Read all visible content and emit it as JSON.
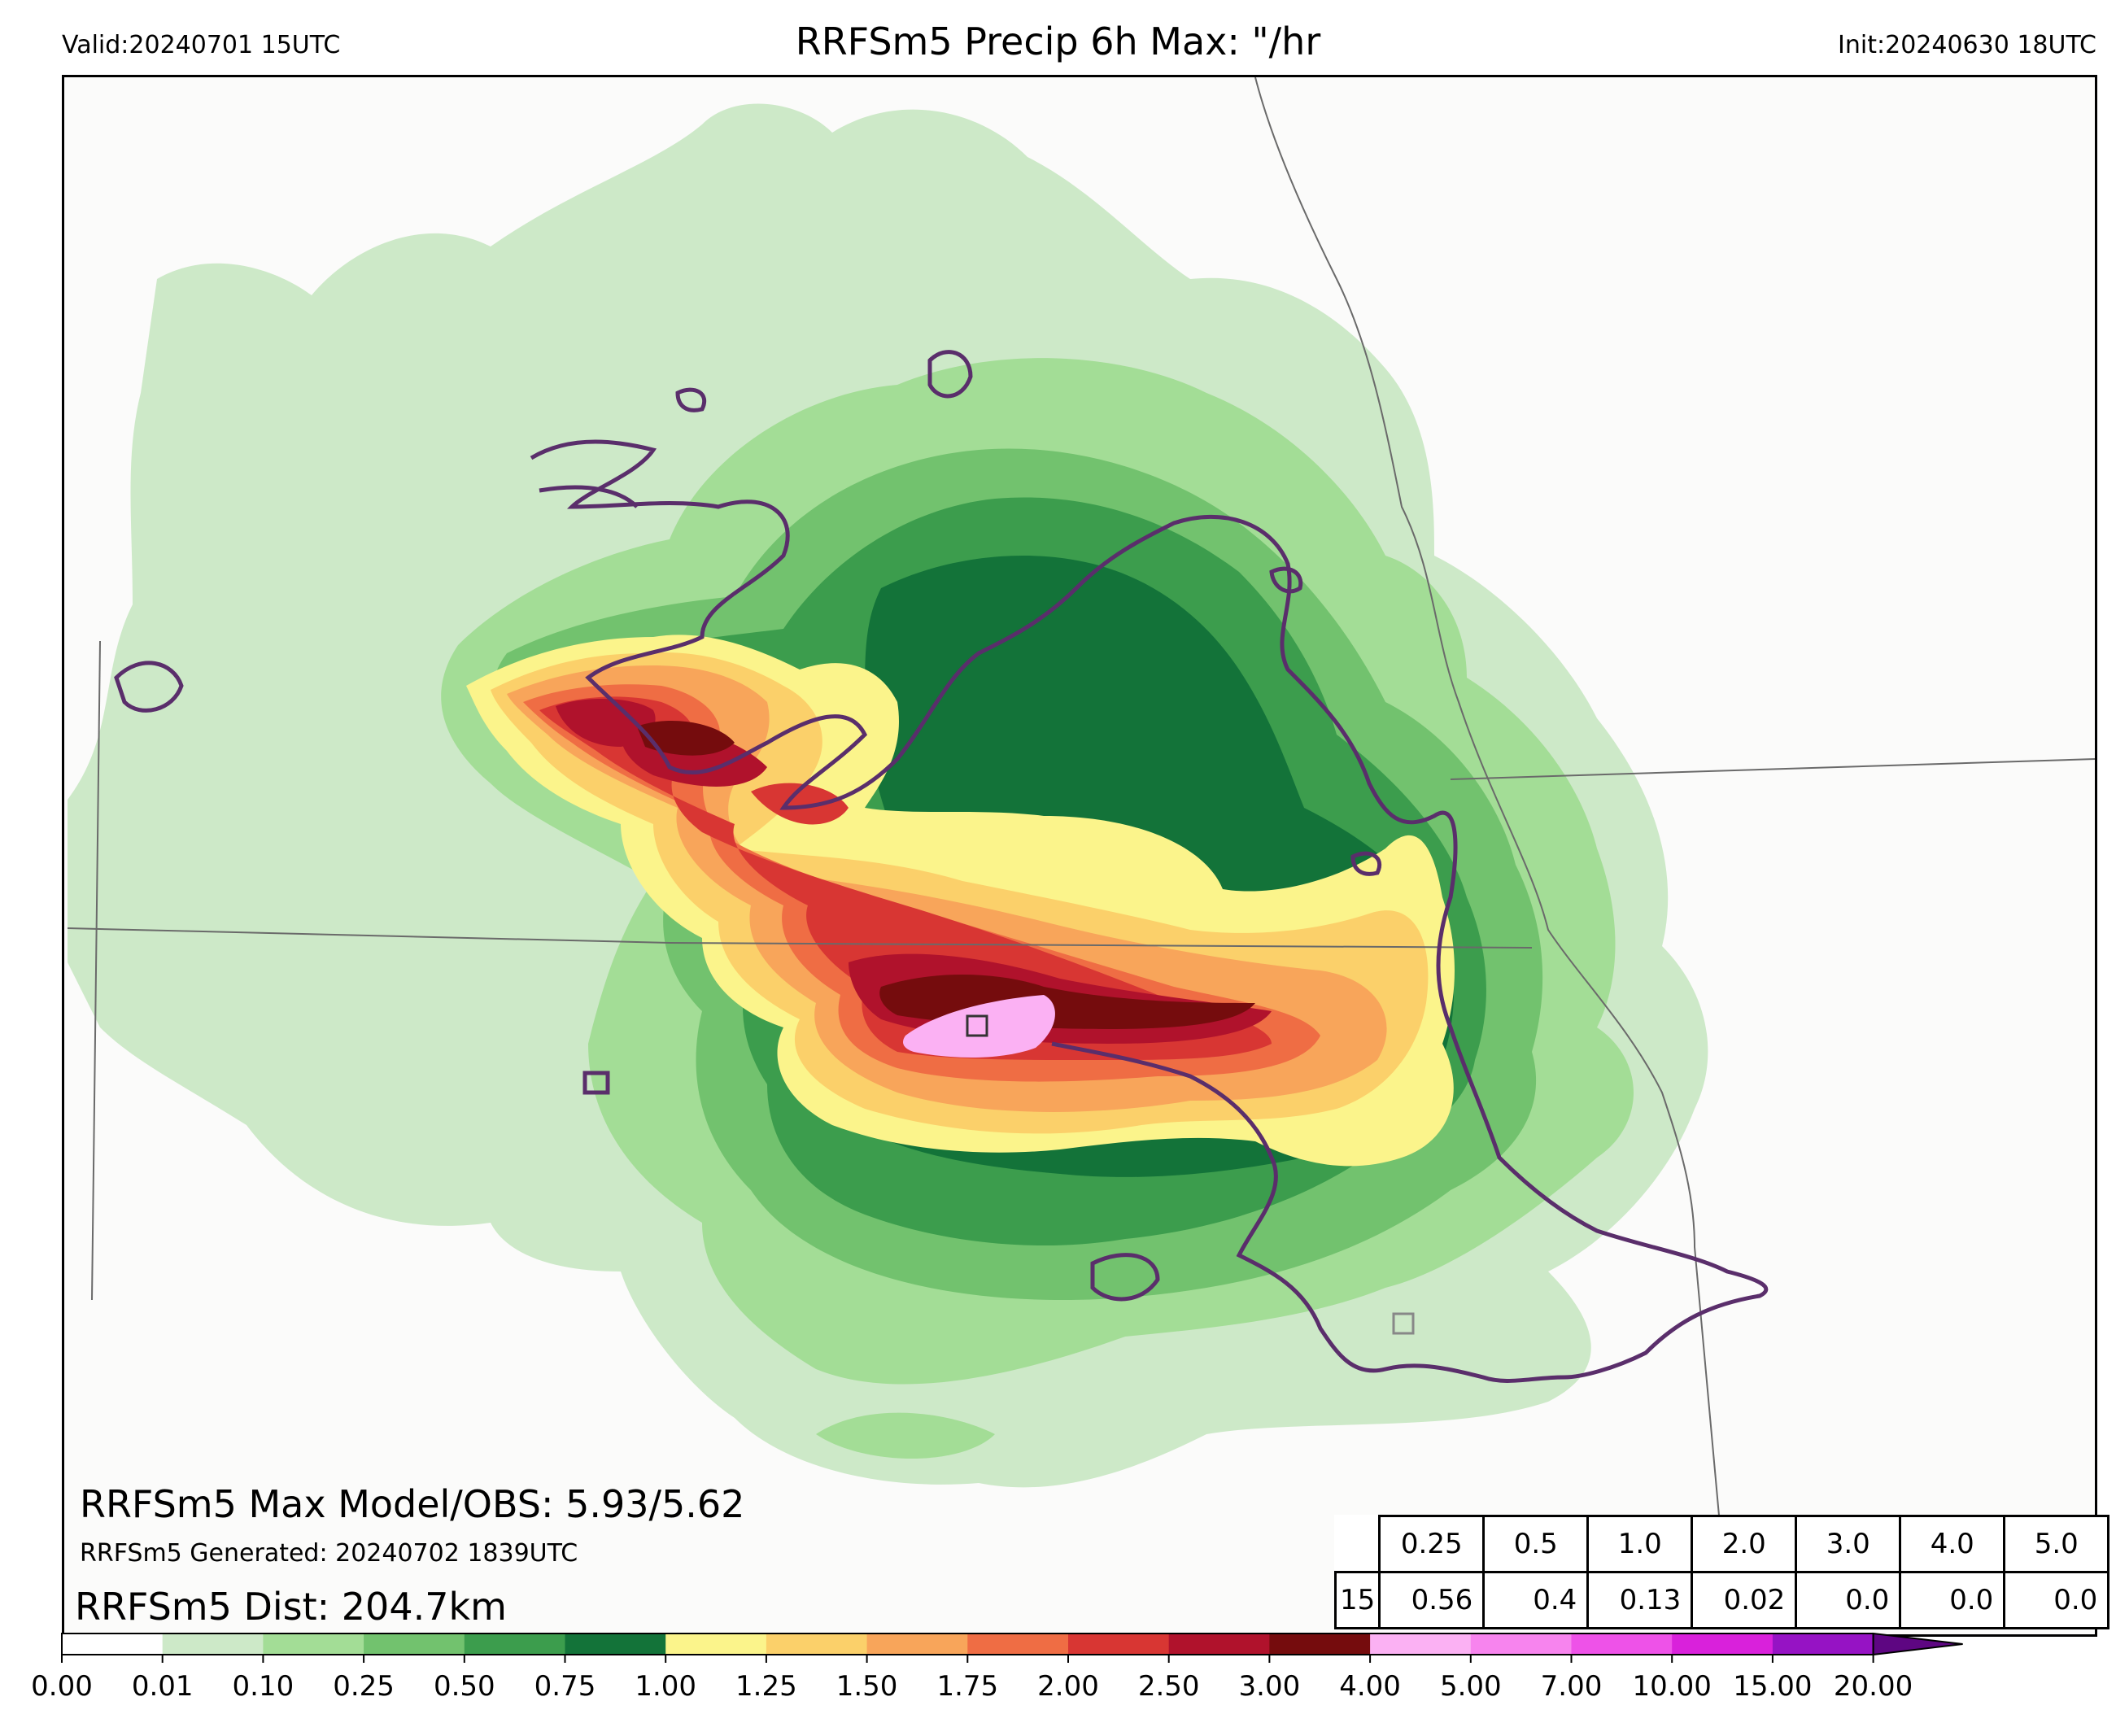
{
  "header": {
    "valid": "Valid:20240701 15UTC",
    "title": "RRFSm5 Precip 6h Max: \"/hr",
    "init": "Init:20240630 18UTC"
  },
  "annotations": {
    "max_model_obs": "RRFSm5 Max Model/OBS: 5.93/5.62",
    "generated": "RRFSm5 Generated: 20240702 1839UTC",
    "dist": "RRFSm5 Dist: 204.7km"
  },
  "stats_table": {
    "thresholds": [
      "0.25",
      "0.5",
      "1.0",
      "2.0",
      "3.0",
      "4.0",
      "5.0"
    ],
    "row_label": "15",
    "values": [
      "0.56",
      "0.4",
      "0.13",
      "0.02",
      "0.0",
      "0.0",
      "0.0"
    ]
  },
  "colorbar": {
    "ticks": [
      "0.00",
      "0.01",
      "0.10",
      "0.25",
      "0.50",
      "0.75",
      "1.00",
      "1.25",
      "1.50",
      "1.75",
      "2.00",
      "2.50",
      "3.00",
      "4.00",
      "5.00",
      "7.00",
      "10.00",
      "15.00",
      "20.00"
    ],
    "colors": [
      "#ffffff",
      "#cde9c8",
      "#a3dd96",
      "#72c26e",
      "#3c9d4d",
      "#137339",
      "#fbf48b",
      "#fbd06a",
      "#f8a55a",
      "#ef6d44",
      "#d83633",
      "#b0122c",
      "#750c0d",
      "#fbb1f3",
      "#f784ee",
      "#ee52e8",
      "#d921db",
      "#9613c4"
    ],
    "extend_color": "#5e0682"
  },
  "map": {
    "colors": {
      "outline": "#5a2e6b",
      "boundary": "#6a6a6a",
      "background": "#fbfbfa"
    },
    "markers": [
      "obs-max-marker",
      "model-max-marker"
    ]
  }
}
